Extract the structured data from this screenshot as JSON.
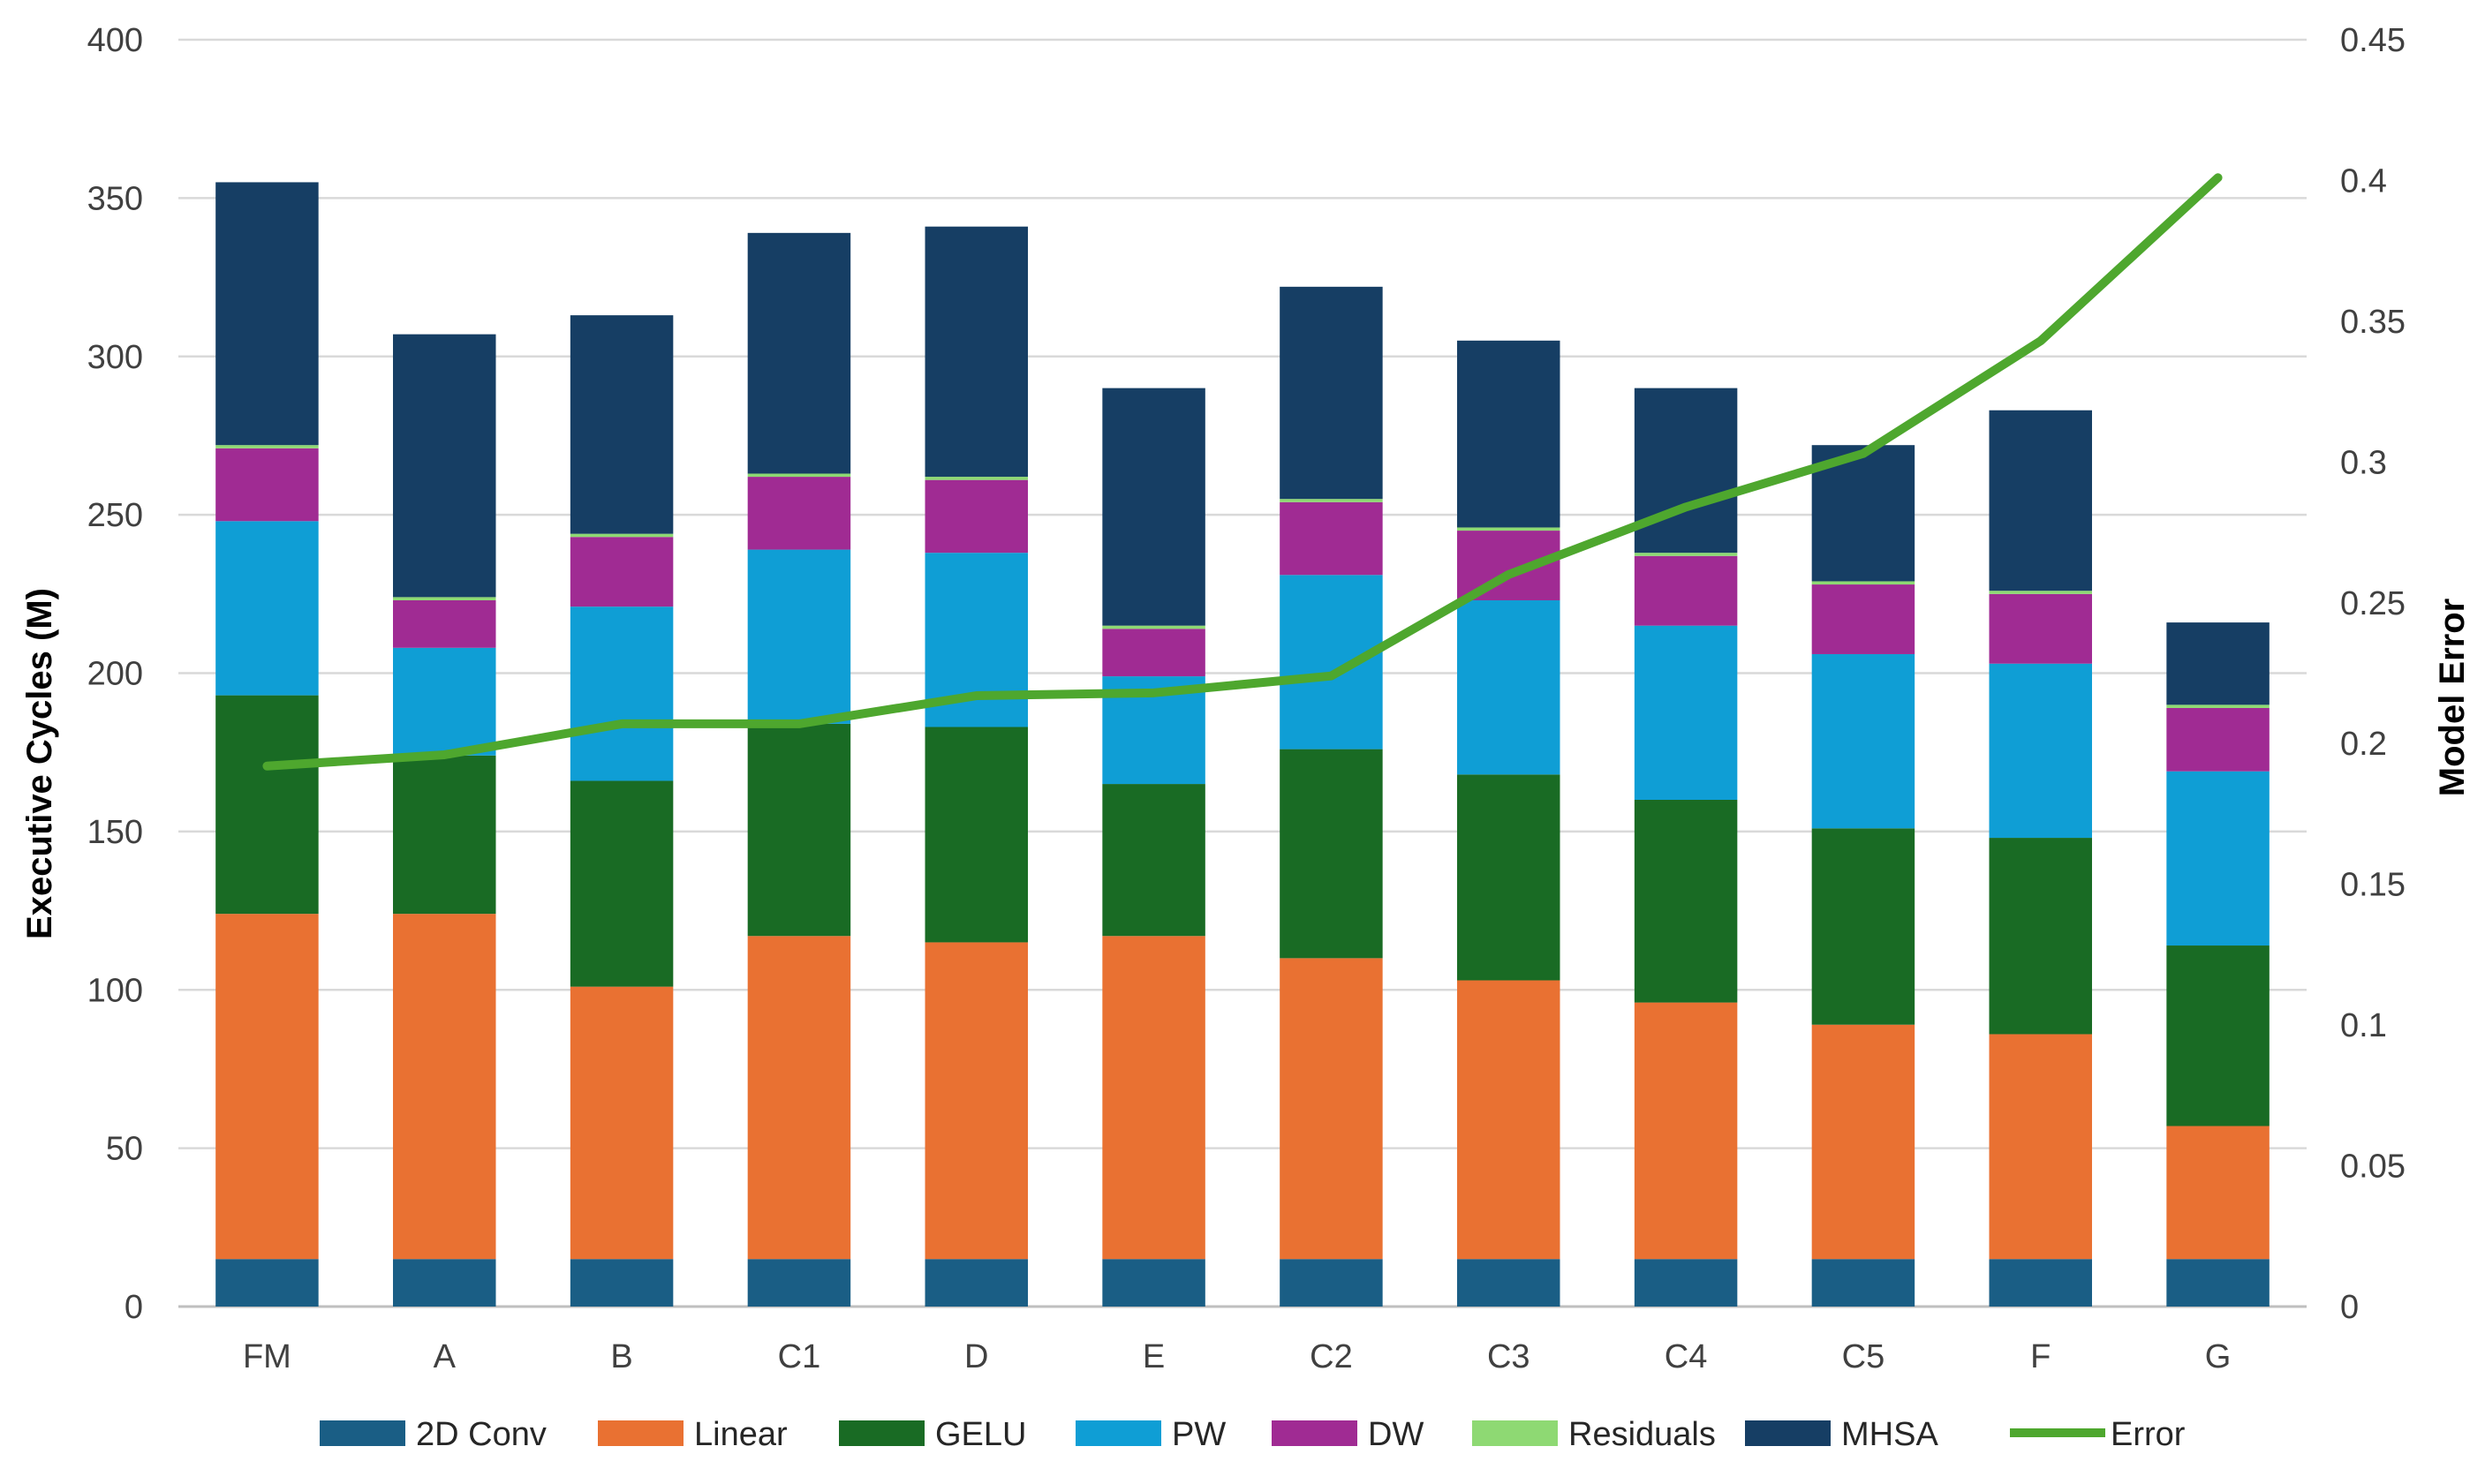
{
  "chart_data": {
    "type": "bar",
    "stacked": true,
    "title": "",
    "xlabel": "",
    "ylabel": "Executive Cycles (M)",
    "y2label": "Model Error",
    "ylim": [
      0,
      400
    ],
    "y2lim": [
      0,
      0.45
    ],
    "yticks": [
      "0",
      "50",
      "100",
      "150",
      "200",
      "250",
      "300",
      "350",
      "400"
    ],
    "y2ticks": [
      "0",
      "0.05",
      "0.1",
      "0.15",
      "0.2",
      "0.25",
      "0.3",
      "0.35",
      "0.4",
      "0.45"
    ],
    "legend_position": "bottom",
    "categories": [
      "FM",
      "A",
      "B",
      "C1",
      "D",
      "E",
      "C2",
      "C3",
      "C4",
      "C5",
      "F",
      "G"
    ],
    "series": [
      {
        "name": "2D Conv",
        "color": "#1a5e85",
        "values": [
          15,
          15,
          15,
          15,
          15,
          15,
          15,
          15,
          15,
          15,
          15,
          15
        ]
      },
      {
        "name": "Linear",
        "color": "#e97132",
        "values": [
          109,
          109,
          86,
          102,
          100,
          102,
          95,
          88,
          81,
          74,
          71,
          42
        ]
      },
      {
        "name": "GELU",
        "color": "#196b24",
        "values": [
          69,
          50,
          65,
          67,
          68,
          48,
          66,
          65,
          64,
          62,
          62,
          57
        ]
      },
      {
        "name": "PW",
        "color": "#0f9ed5",
        "values": [
          55,
          34,
          55,
          55,
          55,
          34,
          55,
          55,
          55,
          55,
          55,
          55
        ]
      },
      {
        "name": "DW",
        "color": "#a02b93",
        "values": [
          23,
          15,
          22,
          23,
          23,
          15,
          23,
          22,
          22,
          22,
          22,
          20
        ]
      },
      {
        "name": "Residuals",
        "color": "#8ed973",
        "values": [
          1,
          1,
          1,
          1,
          1,
          1,
          1,
          1,
          1,
          1,
          1,
          1
        ]
      },
      {
        "name": "MHSA",
        "color": "#163e64",
        "values": [
          83,
          83,
          69,
          76,
          79,
          75,
          67,
          59,
          52,
          43,
          57,
          26
        ]
      }
    ],
    "line_series": {
      "name": "Error",
      "color": "#4ea72e",
      "values": [
        0.192,
        0.196,
        0.207,
        0.207,
        0.217,
        0.218,
        0.224,
        0.26,
        0.284,
        0.303,
        0.343,
        0.401
      ]
    }
  }
}
